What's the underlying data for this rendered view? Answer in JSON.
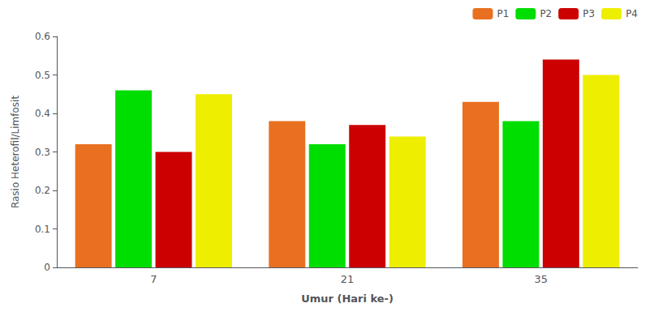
{
  "chart_data": {
    "type": "bar",
    "categories": [
      "7",
      "21",
      "35"
    ],
    "series": [
      {
        "name": "P1",
        "color": "#E87020",
        "values": [
          0.32,
          0.38,
          0.43
        ]
      },
      {
        "name": "P2",
        "color": "#00DD00",
        "values": [
          0.46,
          0.32,
          0.38
        ]
      },
      {
        "name": "P3",
        "color": "#CC0000",
        "values": [
          0.3,
          0.37,
          0.54
        ]
      },
      {
        "name": "P4",
        "color": "#EEEE00",
        "values": [
          0.45,
          0.34,
          0.5
        ]
      }
    ],
    "xlabel": "Umur (Hari ke-)",
    "ylabel": "Rasio Heterofil/Limfosit",
    "ylim": [
      0,
      0.6
    ],
    "yticks": [
      0,
      0.1,
      0.2,
      0.3,
      0.4,
      0.5,
      0.6
    ],
    "grid": false,
    "legend": "upper right"
  }
}
